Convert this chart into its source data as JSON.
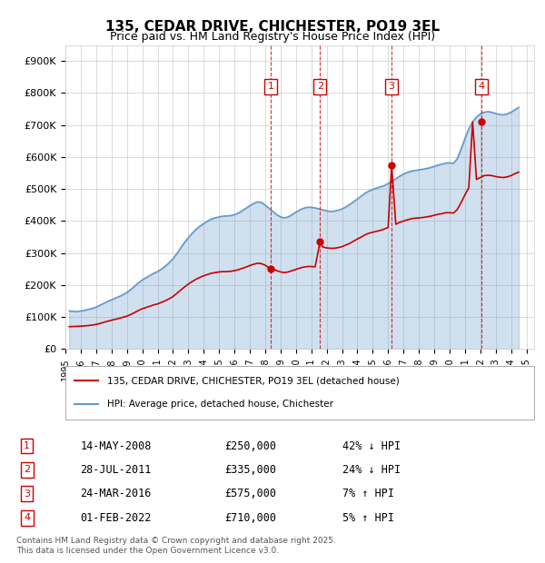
{
  "title": "135, CEDAR DRIVE, CHICHESTER, PO19 3EL",
  "subtitle": "Price paid vs. HM Land Registry's House Price Index (HPI)",
  "ylabel_ticks": [
    "£0",
    "£100K",
    "£200K",
    "£300K",
    "£400K",
    "£500K",
    "£600K",
    "£700K",
    "£800K",
    "£900K"
  ],
  "ytick_values": [
    0,
    100000,
    200000,
    300000,
    400000,
    500000,
    600000,
    700000,
    800000,
    900000
  ],
  "ylim": [
    0,
    950000
  ],
  "xlim_start": 1995.0,
  "xlim_end": 2025.5,
  "line_color_red": "#cc0000",
  "line_color_blue": "#6699cc",
  "background_color": "#dce9f5",
  "plot_bg": "#ffffff",
  "transactions": [
    {
      "num": 1,
      "date": "14-MAY-2008",
      "price": 250000,
      "year": 2008.37,
      "hpi_pct": "42% ↓ HPI"
    },
    {
      "num": 2,
      "date": "28-JUL-2011",
      "price": 335000,
      "year": 2011.57,
      "hpi_pct": "24% ↓ HPI"
    },
    {
      "num": 3,
      "date": "24-MAR-2016",
      "price": 575000,
      "year": 2016.23,
      "hpi_pct": "7% ↑ HPI"
    },
    {
      "num": 4,
      "date": "01-FEB-2022",
      "price": 710000,
      "year": 2022.09,
      "hpi_pct": "5% ↑ HPI"
    }
  ],
  "legend_line1": "135, CEDAR DRIVE, CHICHESTER, PO19 3EL (detached house)",
  "legend_line2": "HPI: Average price, detached house, Chichester",
  "footer": "Contains HM Land Registry data © Crown copyright and database right 2025.\nThis data is licensed under the Open Government Licence v3.0.",
  "hpi_data": {
    "years": [
      1995.25,
      1995.5,
      1995.75,
      1996.0,
      1996.25,
      1996.5,
      1996.75,
      1997.0,
      1997.25,
      1997.5,
      1997.75,
      1998.0,
      1998.25,
      1998.5,
      1998.75,
      1999.0,
      1999.25,
      1999.5,
      1999.75,
      2000.0,
      2000.25,
      2000.5,
      2000.75,
      2001.0,
      2001.25,
      2001.5,
      2001.75,
      2002.0,
      2002.25,
      2002.5,
      2002.75,
      2003.0,
      2003.25,
      2003.5,
      2003.75,
      2004.0,
      2004.25,
      2004.5,
      2004.75,
      2005.0,
      2005.25,
      2005.5,
      2005.75,
      2006.0,
      2006.25,
      2006.5,
      2006.75,
      2007.0,
      2007.25,
      2007.5,
      2007.75,
      2008.0,
      2008.25,
      2008.5,
      2008.75,
      2009.0,
      2009.25,
      2009.5,
      2009.75,
      2010.0,
      2010.25,
      2010.5,
      2010.75,
      2011.0,
      2011.25,
      2011.5,
      2011.75,
      2012.0,
      2012.25,
      2012.5,
      2012.75,
      2013.0,
      2013.25,
      2013.5,
      2013.75,
      2014.0,
      2014.25,
      2014.5,
      2014.75,
      2015.0,
      2015.25,
      2015.5,
      2015.75,
      2016.0,
      2016.25,
      2016.5,
      2016.75,
      2017.0,
      2017.25,
      2017.5,
      2017.75,
      2018.0,
      2018.25,
      2018.5,
      2018.75,
      2019.0,
      2019.25,
      2019.5,
      2019.75,
      2020.0,
      2020.25,
      2020.5,
      2020.75,
      2021.0,
      2021.25,
      2021.5,
      2021.75,
      2022.0,
      2022.25,
      2022.5,
      2022.75,
      2023.0,
      2023.25,
      2023.5,
      2023.75,
      2024.0,
      2024.25,
      2024.5
    ],
    "values": [
      119000,
      118000,
      117000,
      119000,
      121000,
      124000,
      127000,
      131000,
      137000,
      143000,
      149000,
      154000,
      159000,
      164000,
      170000,
      177000,
      186000,
      196000,
      207000,
      216000,
      223000,
      230000,
      237000,
      242000,
      250000,
      259000,
      270000,
      282000,
      298000,
      316000,
      333000,
      348000,
      362000,
      374000,
      384000,
      392000,
      400000,
      406000,
      410000,
      413000,
      415000,
      416000,
      417000,
      420000,
      425000,
      432000,
      440000,
      448000,
      455000,
      460000,
      458000,
      450000,
      440000,
      430000,
      420000,
      413000,
      410000,
      413000,
      420000,
      428000,
      435000,
      440000,
      443000,
      443000,
      441000,
      438000,
      435000,
      432000,
      430000,
      431000,
      434000,
      438000,
      444000,
      452000,
      460000,
      469000,
      478000,
      487000,
      494000,
      499000,
      503000,
      507000,
      511000,
      517000,
      524000,
      532000,
      540000,
      547000,
      552000,
      556000,
      558000,
      560000,
      562000,
      564000,
      567000,
      571000,
      575000,
      578000,
      581000,
      582000,
      580000,
      595000,
      625000,
      658000,
      688000,
      710000,
      725000,
      735000,
      740000,
      742000,
      740000,
      736000,
      733000,
      732000,
      735000,
      740000,
      748000,
      755000
    ]
  },
  "red_data": {
    "years": [
      1995.25,
      1995.5,
      1995.75,
      1996.0,
      1996.25,
      1996.5,
      1996.75,
      1997.0,
      1997.25,
      1997.5,
      1997.75,
      1998.0,
      1998.25,
      1998.5,
      1998.75,
      1999.0,
      1999.25,
      1999.5,
      1999.75,
      2000.0,
      2000.25,
      2000.5,
      2000.75,
      2001.0,
      2001.25,
      2001.5,
      2001.75,
      2002.0,
      2002.25,
      2002.5,
      2002.75,
      2003.0,
      2003.25,
      2003.5,
      2003.75,
      2004.0,
      2004.25,
      2004.5,
      2004.75,
      2005.0,
      2005.25,
      2005.5,
      2005.75,
      2006.0,
      2006.25,
      2006.5,
      2006.75,
      2007.0,
      2007.25,
      2007.5,
      2007.75,
      2008.0,
      2008.37,
      2008.5,
      2008.75,
      2009.0,
      2009.25,
      2009.5,
      2009.75,
      2010.0,
      2010.25,
      2010.5,
      2010.75,
      2011.0,
      2011.25,
      2011.57,
      2011.75,
      2012.0,
      2012.25,
      2012.5,
      2012.75,
      2013.0,
      2013.25,
      2013.5,
      2013.75,
      2014.0,
      2014.25,
      2014.5,
      2014.75,
      2015.0,
      2015.25,
      2015.5,
      2015.75,
      2016.0,
      2016.23,
      2016.5,
      2016.75,
      2017.0,
      2017.25,
      2017.5,
      2017.75,
      2018.0,
      2018.25,
      2018.5,
      2018.75,
      2019.0,
      2019.25,
      2019.5,
      2019.75,
      2020.0,
      2020.25,
      2020.5,
      2020.75,
      2021.0,
      2021.25,
      2021.5,
      2021.75,
      2022.09,
      2022.25,
      2022.5,
      2022.75,
      2023.0,
      2023.25,
      2023.5,
      2023.75,
      2024.0,
      2024.25,
      2024.5
    ],
    "values": [
      70000,
      70500,
      71000,
      71500,
      72500,
      73500,
      75000,
      77000,
      80000,
      83500,
      87000,
      90000,
      93000,
      96000,
      99500,
      103000,
      108000,
      114000,
      120500,
      126000,
      130000,
      134000,
      138000,
      141000,
      146000,
      151000,
      157000,
      164000,
      174000,
      184000,
      194000,
      203000,
      211000,
      218000,
      224000,
      229000,
      233000,
      237000,
      239000,
      241000,
      242000,
      242000,
      243000,
      245000,
      248000,
      252000,
      256000,
      261000,
      265000,
      268000,
      267000,
      262000,
      250000,
      251000,
      245000,
      241000,
      239000,
      241000,
      245000,
      249000,
      253000,
      256000,
      258000,
      258000,
      257000,
      335000,
      319000,
      316000,
      315000,
      315000,
      317000,
      320000,
      325000,
      330000,
      337000,
      344000,
      350000,
      357000,
      362000,
      365000,
      368000,
      371000,
      375000,
      380000,
      575000,
      390000,
      396000,
      400000,
      404000,
      407000,
      409000,
      410000,
      411000,
      413000,
      415000,
      418000,
      421000,
      423000,
      426000,
      426000,
      425000,
      436000,
      458000,
      482000,
      504000,
      710000,
      530000,
      538000,
      542000,
      543000,
      542000,
      539000,
      537000,
      536000,
      538000,
      542000,
      548000,
      553000
    ]
  }
}
